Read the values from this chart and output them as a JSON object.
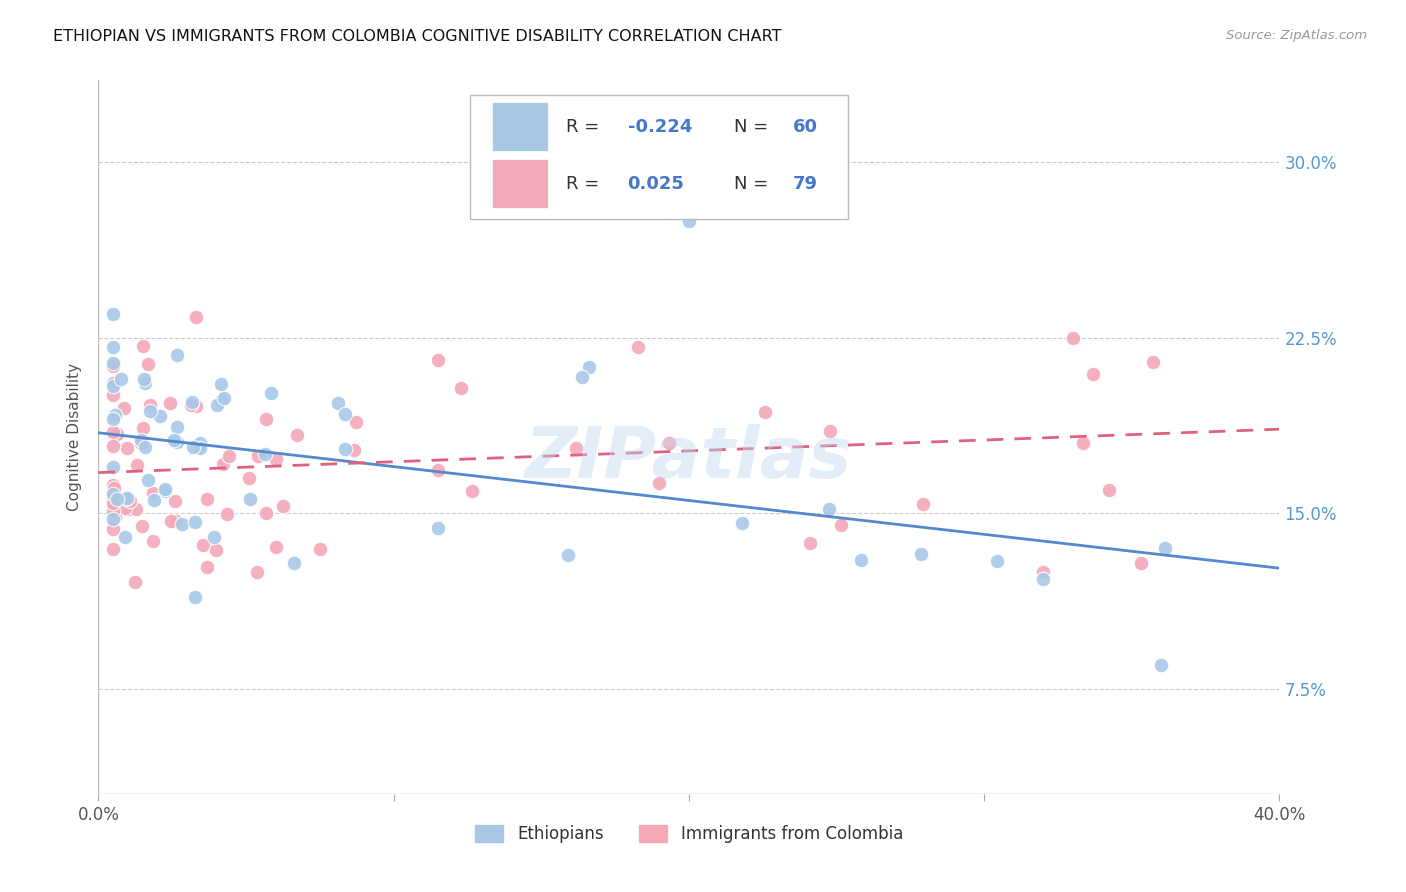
{
  "title": "ETHIOPIAN VS IMMIGRANTS FROM COLOMBIA COGNITIVE DISABILITY CORRELATION CHART",
  "source": "Source: ZipAtlas.com",
  "ylabel": "Cognitive Disability",
  "ytick_labels": [
    "7.5%",
    "15.0%",
    "22.5%",
    "30.0%"
  ],
  "ytick_values": [
    0.075,
    0.15,
    0.225,
    0.3
  ],
  "xlim": [
    0.0,
    0.4
  ],
  "ylim": [
    0.03,
    0.335
  ],
  "color_blue": "#a8c8e8",
  "color_pink": "#f4a8b8",
  "line_blue": "#5588cc",
  "line_pink": "#e06080",
  "watermark": "ZIPatlas",
  "background_color": "#ffffff",
  "grid_color": "#cccccc",
  "eth_r": -0.224,
  "eth_n": 60,
  "col_r": 0.025,
  "col_n": 79
}
